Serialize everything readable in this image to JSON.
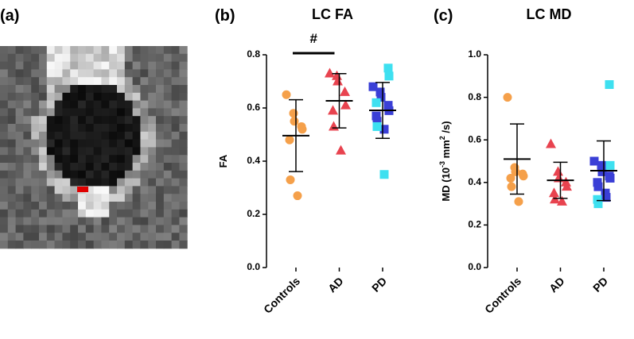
{
  "panel_labels": [
    "(a)",
    "(b)",
    "(c)"
  ],
  "chart_data": [
    {
      "type": "dot",
      "title": "LC FA",
      "ylabel": [
        "FA"
      ],
      "categories": [
        "Controls",
        "AD",
        "PD"
      ],
      "groups": [
        {
          "color": "#f5a04a",
          "marker": "circle",
          "values": [
            0.65,
            0.58,
            0.55,
            0.53,
            0.52,
            0.48,
            0.33,
            0.27
          ],
          "mean": 0.496,
          "sd": 0.135
        },
        {
          "color": "#e8434f",
          "marker": "triangle",
          "values": [
            0.73,
            0.72,
            0.7,
            0.66,
            0.61,
            0.59,
            0.53,
            0.44
          ],
          "mean": 0.627,
          "sd": 0.102
        },
        {
          "color": "#3a3fd6",
          "marker": "square",
          "values": [
            0.68,
            0.66,
            0.64,
            0.61,
            0.59,
            0.57,
            0.55,
            0.52
          ],
          "mean": 0.591,
          "sd": 0.105,
          "subset_color": "#3ee0f0",
          "subset_values": [
            0.75,
            0.72,
            0.62,
            0.53,
            0.35
          ]
        }
      ],
      "ylim": [
        0,
        0.8
      ],
      "yticks": [
        {
          "value": 0,
          "label": "0.0"
        },
        0.2,
        0.4,
        0.6,
        0.8
      ],
      "annotation": "#"
    },
    {
      "type": "dot",
      "title": "LC MD",
      "ylabel": [
        "MD (10",
        "-3",
        " mm",
        "2",
        " /s)"
      ],
      "categories": [
        "Controls",
        "AD",
        "PD"
      ],
      "groups": [
        {
          "color": "#f5a04a",
          "marker": "circle",
          "values": [
            0.8,
            0.47,
            0.45,
            0.44,
            0.43,
            0.42,
            0.38,
            0.31
          ],
          "mean": 0.51,
          "sd": 0.165
        },
        {
          "color": "#e8434f",
          "marker": "triangle",
          "values": [
            0.58,
            0.45,
            0.42,
            0.4,
            0.38,
            0.35,
            0.32,
            0.31
          ],
          "mean": 0.41,
          "sd": 0.085
        },
        {
          "color": "#3a3fd6",
          "marker": "square",
          "values": [
            0.5,
            0.48,
            0.45,
            0.43,
            0.42,
            0.4,
            0.38,
            0.35,
            0.33
          ],
          "mean": 0.455,
          "sd": 0.14,
          "subset_color": "#3ee0f0",
          "subset_values": [
            0.86,
            0.48,
            0.32,
            0.3
          ]
        }
      ],
      "ylim": [
        0,
        1
      ],
      "yticks": [
        {
          "value": 0,
          "label": "0.0"
        },
        0.2,
        0.4,
        0.6,
        0.8,
        {
          "value": 1,
          "label": "1.0"
        }
      ]
    }
  ]
}
